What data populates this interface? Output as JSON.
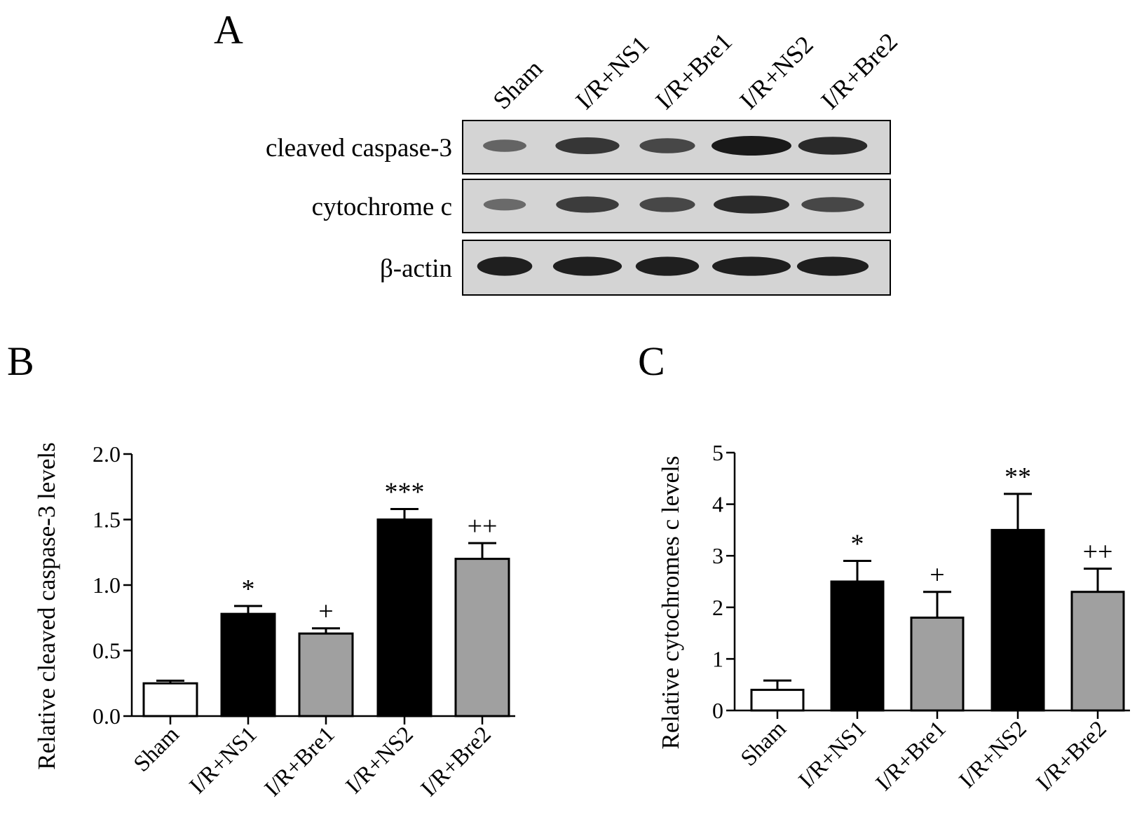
{
  "panels": {
    "a": "A",
    "b": "B",
    "c": "C"
  },
  "blot": {
    "lanes": [
      "Sham",
      "I/R+NS1",
      "I/R+Bre1",
      "I/R+NS2",
      "I/R+Bre2"
    ],
    "proteins": [
      "cleaved caspase-3",
      "cytochrome c",
      "β-actin"
    ],
    "band_intensity": [
      [
        0.35,
        0.75,
        0.6,
        1.0,
        0.85
      ],
      [
        0.3,
        0.7,
        0.6,
        0.85,
        0.6
      ],
      [
        0.95,
        0.95,
        0.95,
        0.95,
        0.95
      ]
    ]
  },
  "chart_data": [
    {
      "type": "bar",
      "panel": "B",
      "categories": [
        "Sham",
        "I/R+NS1",
        "I/R+Bre1",
        "I/R+NS2",
        "I/R+Bre2"
      ],
      "values": [
        0.25,
        0.78,
        0.63,
        1.5,
        1.2
      ],
      "errors": [
        0.02,
        0.06,
        0.04,
        0.08,
        0.12
      ],
      "fills": [
        "#ffffff",
        "#000000",
        "#a0a0a0",
        "#000000",
        "#a0a0a0"
      ],
      "significance": [
        "",
        "*",
        "+",
        "***",
        "++"
      ],
      "ylabel": "Relative cleaved caspase-3 levels",
      "ylim": [
        0,
        2.0
      ],
      "yticks": [
        "0.0",
        "0.5",
        "1.0",
        "1.5",
        "2.0"
      ],
      "grid": false
    },
    {
      "type": "bar",
      "panel": "C",
      "categories": [
        "Sham",
        "I/R+NS1",
        "I/R+Bre1",
        "I/R+NS2",
        "I/R+Bre2"
      ],
      "values": [
        0.4,
        2.5,
        1.8,
        3.5,
        2.3
      ],
      "errors": [
        0.18,
        0.4,
        0.5,
        0.7,
        0.45
      ],
      "fills": [
        "#ffffff",
        "#000000",
        "#a0a0a0",
        "#000000",
        "#a0a0a0"
      ],
      "significance": [
        "",
        "*",
        "+",
        "**",
        "++"
      ],
      "ylabel": "Relative cytochromes c levels",
      "ylim": [
        0,
        5
      ],
      "yticks": [
        "0",
        "1",
        "2",
        "3",
        "4",
        "5"
      ],
      "grid": false
    }
  ]
}
